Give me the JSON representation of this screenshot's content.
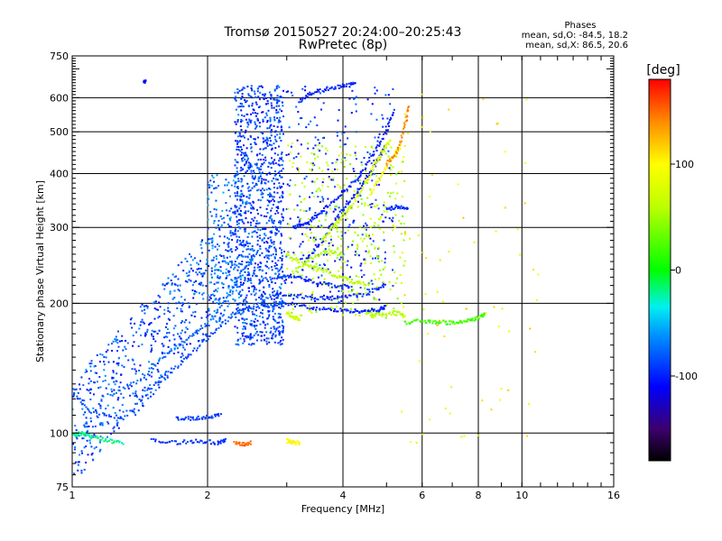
{
  "chart_data": {
    "type": "scatter",
    "title": "Tromsø 20150527 20:24:00–20:25:43",
    "subtitle": "RwPretec (8p)",
    "xlabel": "Frequency [MHz]",
    "ylabel": "Stationary phase Virtual Height [km]",
    "x_scale": "log",
    "y_scale": "log",
    "xlim": [
      1,
      16
    ],
    "ylim": [
      75,
      750
    ],
    "x_ticks": [
      1,
      2,
      4,
      6,
      8,
      10,
      16
    ],
    "x_tick_labels": [
      "1",
      "2",
      "4",
      "6",
      "8",
      "10",
      "16"
    ],
    "x_grid": [
      2,
      4,
      6,
      8,
      10
    ],
    "y_ticks": [
      75,
      100,
      200,
      300,
      400,
      500,
      600,
      750
    ],
    "y_tick_labels": [
      "75",
      "100",
      "200",
      "300",
      "400",
      "500",
      "600",
      "750"
    ],
    "y_grid": [
      100,
      200,
      300,
      400,
      500,
      600
    ],
    "grid": true,
    "stats": {
      "heading": "Phases",
      "line_o": "mean, sd,O: -84.5, 18.2",
      "line_x": "mean, sd,X: 86.5, 20.6",
      "o_mean": -84.5,
      "o_sd": 18.2,
      "x_mean": 86.5,
      "x_sd": 20.6
    },
    "colorbar": {
      "label": "[deg]",
      "range": [
        -180,
        180
      ],
      "ticks": [
        100,
        0,
        -100
      ],
      "tick_labels": [
        "100",
        "0",
        "-100"
      ],
      "colormap": "rainbow"
    },
    "traces": [
      {
        "phase": -85,
        "points": [
          [
            1.0,
            125
          ],
          [
            1.1,
            112
          ],
          [
            1.3,
            108
          ],
          [
            1.5,
            128
          ],
          [
            1.7,
            142
          ],
          [
            1.9,
            158
          ],
          [
            2.1,
            175
          ],
          [
            2.3,
            190
          ],
          [
            2.5,
            196
          ],
          [
            2.8,
            198
          ],
          [
            3.0,
            200
          ]
        ]
      },
      {
        "phase": -75,
        "points": [
          [
            1.2,
            122
          ],
          [
            1.4,
            132
          ],
          [
            1.6,
            150
          ],
          [
            1.8,
            165
          ],
          [
            2.0,
            180
          ],
          [
            2.2,
            205
          ],
          [
            2.4,
            240
          ],
          [
            2.6,
            265
          ]
        ]
      },
      {
        "phase": -95,
        "points": [
          [
            1.5,
            96
          ],
          [
            1.7,
            95
          ],
          [
            1.9,
            96
          ],
          [
            2.1,
            95
          ],
          [
            2.2,
            96
          ]
        ]
      },
      {
        "phase": -90,
        "points": [
          [
            1.7,
            108
          ],
          [
            1.85,
            108
          ],
          [
            2.0,
            109
          ],
          [
            2.15,
            110
          ]
        ]
      },
      {
        "phase": -100,
        "points": [
          [
            3.0,
            200
          ],
          [
            3.4,
            195
          ],
          [
            3.8,
            193
          ],
          [
            4.2,
            192
          ],
          [
            4.5,
            192
          ],
          [
            4.8,
            193
          ],
          [
            5.0,
            196
          ]
        ]
      },
      {
        "phase": -95,
        "points": [
          [
            2.8,
            210
          ],
          [
            3.2,
            208
          ],
          [
            3.6,
            205
          ],
          [
            4.0,
            207
          ],
          [
            4.5,
            210
          ],
          [
            5.0,
            222
          ]
        ]
      },
      {
        "phase": -95,
        "points": [
          [
            2.8,
            230
          ],
          [
            3.1,
            232
          ],
          [
            3.4,
            225
          ],
          [
            3.8,
            220
          ],
          [
            4.2,
            218
          ]
        ]
      },
      {
        "phase": -100,
        "points": [
          [
            3.3,
            250
          ],
          [
            3.6,
            280
          ],
          [
            3.9,
            320
          ],
          [
            4.2,
            350
          ],
          [
            4.5,
            390
          ],
          [
            4.8,
            430
          ],
          [
            5.0,
            470
          ]
        ]
      },
      {
        "phase": -100,
        "points": [
          [
            3.1,
            300
          ],
          [
            3.3,
            305
          ],
          [
            3.5,
            320
          ],
          [
            3.8,
            345
          ],
          [
            4.1,
            370
          ],
          [
            4.4,
            400
          ],
          [
            4.7,
            450
          ],
          [
            5.0,
            500
          ],
          [
            5.2,
            560
          ]
        ]
      },
      {
        "phase": -100,
        "points": [
          [
            3.2,
            590
          ],
          [
            3.4,
            615
          ],
          [
            3.7,
            630
          ],
          [
            4.0,
            640
          ],
          [
            4.3,
            645
          ]
        ]
      },
      {
        "phase": -95,
        "points": [
          [
            5.0,
            330
          ],
          [
            5.3,
            335
          ],
          [
            5.6,
            330
          ]
        ]
      },
      {
        "phase": 60,
        "points": [
          [
            3.0,
            260
          ],
          [
            3.3,
            245
          ],
          [
            3.6,
            240
          ],
          [
            3.9,
            230
          ],
          [
            4.2,
            225
          ],
          [
            4.6,
            220
          ]
        ]
      },
      {
        "phase": 55,
        "points": [
          [
            3.1,
            235
          ],
          [
            3.4,
            255
          ],
          [
            3.7,
            265
          ],
          [
            4.0,
            258
          ]
        ]
      },
      {
        "phase": 65,
        "points": [
          [
            3.6,
            280
          ],
          [
            3.8,
            300
          ],
          [
            4.0,
            320
          ],
          [
            4.2,
            335
          ]
        ]
      },
      {
        "phase": 80,
        "points": [
          [
            4.2,
            340
          ],
          [
            4.5,
            380
          ],
          [
            4.7,
            420
          ],
          [
            4.9,
            450
          ],
          [
            5.1,
            480
          ]
        ]
      },
      {
        "phase": 100,
        "points": [
          [
            4.6,
            360
          ],
          [
            4.9,
            400
          ],
          [
            5.2,
            440
          ],
          [
            5.4,
            470
          ]
        ]
      },
      {
        "phase": 140,
        "points": [
          [
            5.0,
            420
          ],
          [
            5.3,
            450
          ],
          [
            5.5,
            520
          ],
          [
            5.6,
            580
          ]
        ]
      },
      {
        "phase": 70,
        "points": [
          [
            3.0,
            190
          ],
          [
            3.1,
            185
          ],
          [
            3.2,
            184
          ]
        ]
      },
      {
        "phase": 60,
        "points": [
          [
            4.5,
            190
          ],
          [
            4.8,
            188
          ],
          [
            5.2,
            190
          ],
          [
            5.5,
            188
          ]
        ]
      },
      {
        "phase": 20,
        "points": [
          [
            5.5,
            180
          ],
          [
            6.0,
            182
          ],
          [
            6.5,
            181
          ],
          [
            7.0,
            180
          ],
          [
            7.5,
            182
          ],
          [
            8.0,
            185
          ],
          [
            8.3,
            190
          ]
        ]
      },
      {
        "phase": 150,
        "points": [
          [
            2.3,
            95
          ],
          [
            2.4,
            94
          ],
          [
            2.5,
            95
          ]
        ]
      },
      {
        "phase": 100,
        "points": [
          [
            3.0,
            96
          ],
          [
            3.1,
            95
          ],
          [
            3.2,
            95
          ]
        ]
      },
      {
        "phase": -20,
        "points": [
          [
            1.0,
            99
          ],
          [
            1.05,
            100
          ],
          [
            1.1,
            98
          ],
          [
            1.2,
            96
          ],
          [
            1.3,
            95
          ]
        ]
      },
      {
        "phase": -110,
        "points": [
          [
            1.45,
            650
          ],
          [
            1.45,
            660
          ]
        ]
      }
    ],
    "scatter_regions": [
      {
        "name": "low-frequency-cloud",
        "freq": [
          1.0,
          2.3
        ],
        "height": [
          88,
          260
        ],
        "phase": -85,
        "count": 650
      },
      {
        "name": "vertical-band",
        "freq": [
          2.3,
          2.95
        ],
        "height": [
          160,
          640
        ],
        "phase": -88,
        "count": 1100
      },
      {
        "name": "spread-f-cloud",
        "freq": [
          2.0,
          2.4
        ],
        "height": [
          200,
          400
        ],
        "phase": -70,
        "count": 160
      },
      {
        "name": "mid-cloud",
        "freq": [
          2.95,
          5.2
        ],
        "height": [
          200,
          640
        ],
        "phase": -95,
        "count": 320
      },
      {
        "name": "x-mode-cloud",
        "freq": [
          3.0,
          5.5
        ],
        "height": [
          185,
          470
        ],
        "phase": 60,
        "count": 360
      },
      {
        "name": "high-freq-scatter",
        "freq": [
          5.4,
          11.0
        ],
        "height": [
          90,
          620
        ],
        "phase": 100,
        "count": 70
      }
    ]
  }
}
